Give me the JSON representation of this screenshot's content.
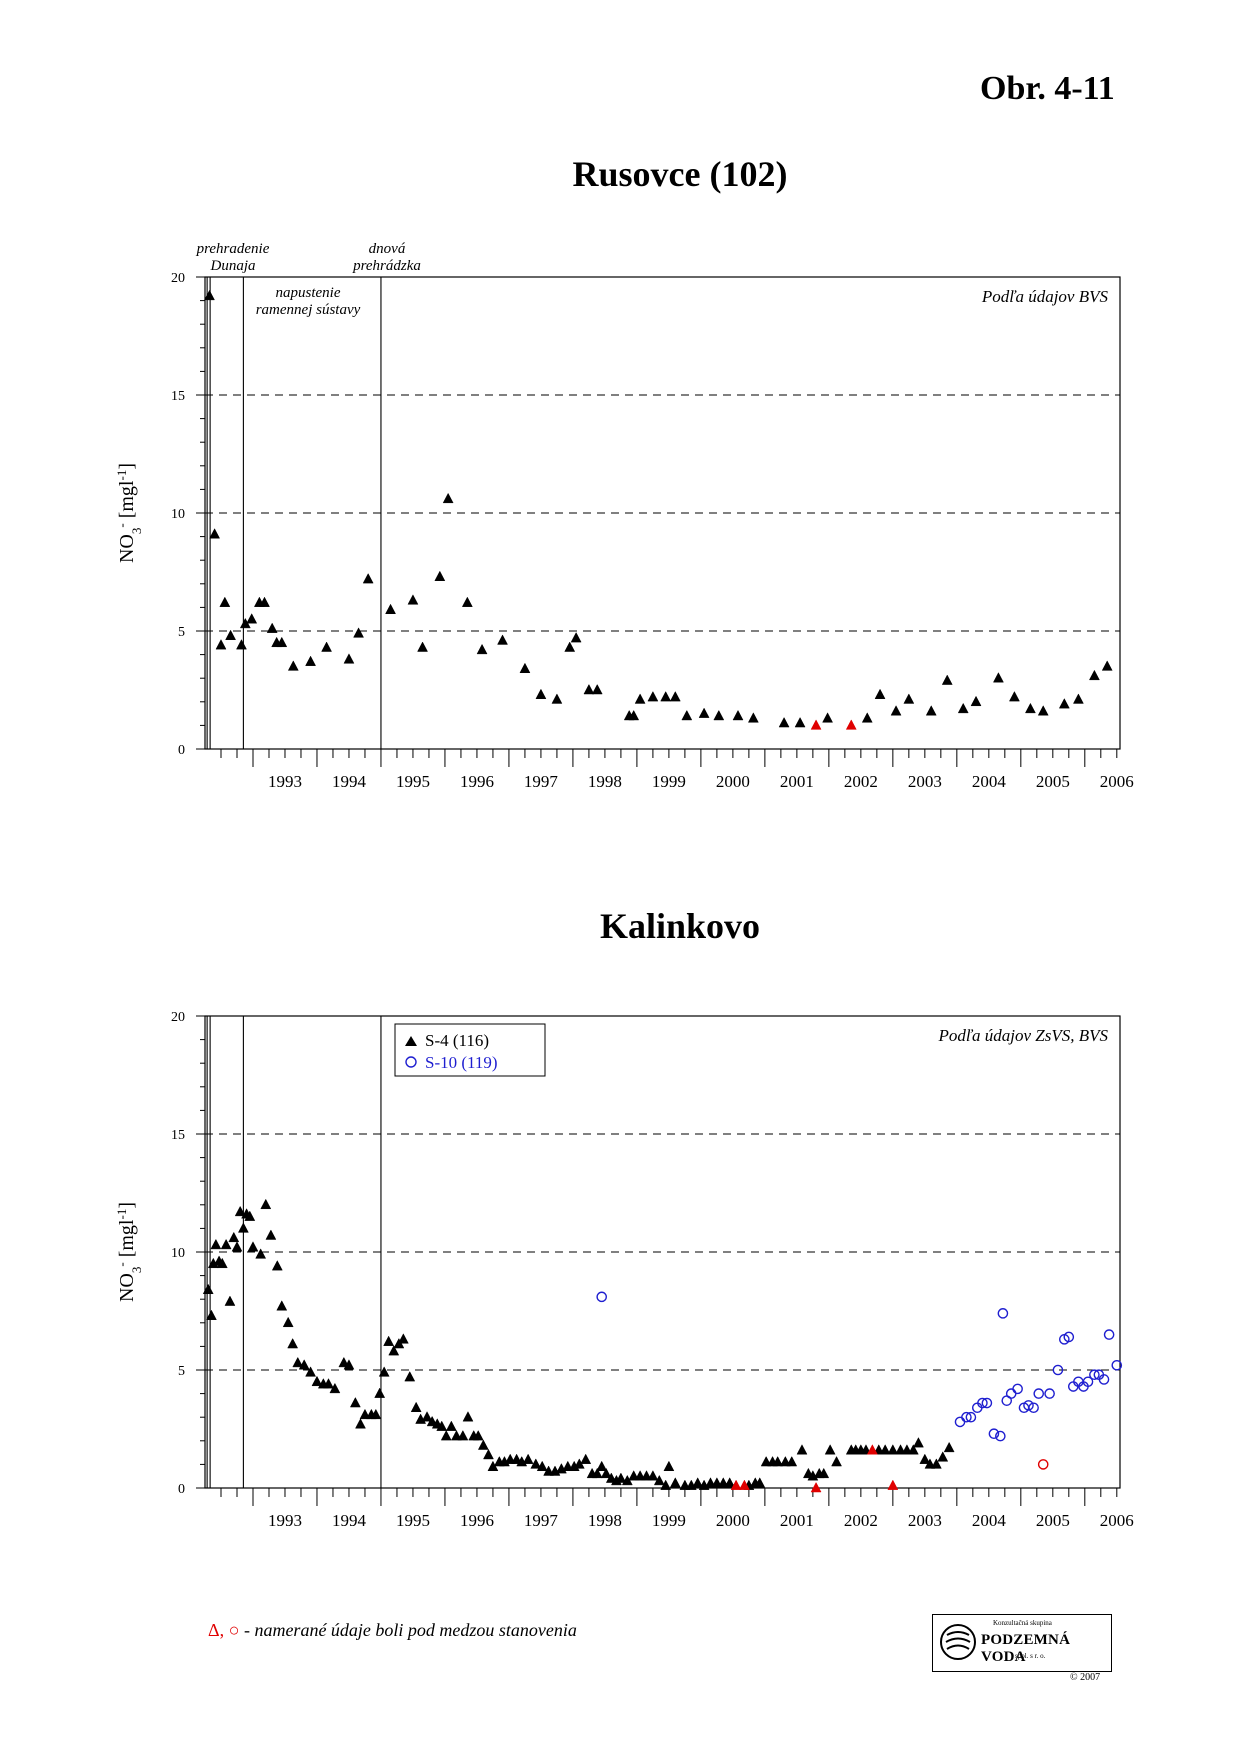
{
  "figure_number": "Obr. 4-11",
  "footnote": {
    "symbols": "Δ, ○",
    "text": " - namerané údaje boli pod medzou stanovenia"
  },
  "logo": {
    "top_text": "Konzultačná skupina",
    "main_text": "PODZEMNÁ VODA",
    "sub_text": "spol. s r. o.",
    "copyright": "© 2007"
  },
  "colors": {
    "normal": "#000000",
    "below_detection": "#e00000",
    "s10": "#1f1fd0"
  },
  "chart_data": [
    {
      "type": "scatter",
      "title": "Rusovce (102)",
      "ylabel": "NO3- [mgl-1]",
      "ylabel_parts": {
        "base": "NO",
        "sub": "3",
        "sup": "-",
        "unit": "[mgl",
        "unit_sup": "-1",
        "close": "]"
      },
      "ylim": [
        0,
        20
      ],
      "yticks": [
        0,
        5,
        10,
        15,
        20
      ],
      "xlim": [
        1992.25,
        2006.55
      ],
      "xticks": [
        "1993",
        "1994",
        "1995",
        "1996",
        "1997",
        "1998",
        "1999",
        "2000",
        "2001",
        "2002",
        "2003",
        "2004",
        "2005",
        "2006"
      ],
      "grid": "dashed at 5, 10, 15",
      "source_note": "Podľa údajov BVS",
      "events": [
        {
          "x": 1992.33,
          "label": [
            "prehradenie",
            "Dunaja"
          ]
        },
        {
          "x": 1992.85,
          "label": [
            "napustenie",
            "ramennej sústavy"
          ]
        },
        {
          "x": 1995.0,
          "label": [
            "dnová",
            "prehrádzka"
          ]
        }
      ],
      "series": [
        {
          "marker": "triangle",
          "points": [
            [
              1992.32,
              19.2
            ],
            [
              1992.4,
              9.1
            ],
            [
              1992.5,
              4.4
            ],
            [
              1992.56,
              6.2
            ],
            [
              1992.65,
              4.8
            ],
            [
              1992.82,
              4.4
            ],
            [
              1992.88,
              5.3
            ],
            [
              1992.98,
              5.5
            ],
            [
              1993.1,
              6.2
            ],
            [
              1993.18,
              6.2
            ],
            [
              1993.3,
              5.1
            ],
            [
              1993.37,
              4.5
            ],
            [
              1993.45,
              4.5
            ],
            [
              1993.63,
              3.5
            ],
            [
              1993.9,
              3.7
            ],
            [
              1994.15,
              4.3
            ],
            [
              1994.5,
              3.8
            ],
            [
              1994.65,
              4.9
            ],
            [
              1994.8,
              7.2
            ],
            [
              1995.15,
              5.9
            ],
            [
              1995.5,
              6.3
            ],
            [
              1995.65,
              4.3
            ],
            [
              1995.92,
              7.3
            ],
            [
              1996.05,
              10.6
            ],
            [
              1996.35,
              6.2
            ],
            [
              1996.58,
              4.2
            ],
            [
              1996.9,
              4.6
            ],
            [
              1997.25,
              3.4
            ],
            [
              1997.5,
              2.3
            ],
            [
              1997.75,
              2.1
            ],
            [
              1997.95,
              4.3
            ],
            [
              1998.05,
              4.7
            ],
            [
              1998.25,
              2.5
            ],
            [
              1998.38,
              2.5
            ],
            [
              1998.88,
              1.4
            ],
            [
              1998.95,
              1.4
            ],
            [
              1999.05,
              2.1
            ],
            [
              1999.25,
              2.2
            ],
            [
              1999.45,
              2.2
            ],
            [
              1999.6,
              2.2
            ],
            [
              1999.78,
              1.4
            ],
            [
              2000.05,
              1.5
            ],
            [
              2000.28,
              1.4
            ],
            [
              2000.58,
              1.4
            ],
            [
              2000.82,
              1.3
            ],
            [
              2001.3,
              1.1
            ],
            [
              2001.55,
              1.1
            ],
            [
              2001.98,
              1.3
            ],
            [
              2002.6,
              1.3
            ],
            [
              2002.8,
              2.3
            ],
            [
              2003.05,
              1.6
            ],
            [
              2003.25,
              2.1
            ],
            [
              2003.6,
              1.6
            ],
            [
              2003.85,
              2.9
            ],
            [
              2004.1,
              1.7
            ],
            [
              2004.3,
              2.0
            ],
            [
              2004.65,
              3.0
            ],
            [
              2004.9,
              2.2
            ],
            [
              2005.15,
              1.7
            ],
            [
              2005.35,
              1.6
            ],
            [
              2005.68,
              1.9
            ],
            [
              2005.9,
              2.1
            ],
            [
              2006.15,
              3.1
            ],
            [
              2006.35,
              3.5
            ]
          ]
        },
        {
          "marker": "triangle",
          "below_detection": true,
          "points": [
            [
              2001.8,
              1.0
            ],
            [
              2002.35,
              1.0
            ]
          ]
        }
      ]
    },
    {
      "type": "scatter",
      "title": "Kalinkovo",
      "ylabel": "NO3- [mgl-1]",
      "ylabel_parts": {
        "base": "NO",
        "sub": "3",
        "sup": "-",
        "unit": "[mgl",
        "unit_sup": "-1",
        "close": "]"
      },
      "ylim": [
        0,
        20
      ],
      "yticks": [
        0,
        5,
        10,
        15,
        20
      ],
      "xlim": [
        1992.25,
        2006.55
      ],
      "xticks": [
        "1993",
        "1994",
        "1995",
        "1996",
        "1997",
        "1998",
        "1999",
        "2000",
        "2001",
        "2002",
        "2003",
        "2004",
        "2005",
        "2006"
      ],
      "grid": "dashed at 5, 10, 15",
      "source_note": "Podľa údajov ZsVS, BVS",
      "events": [
        {
          "x": 1992.33,
          "label": []
        },
        {
          "x": 1992.85,
          "label": []
        },
        {
          "x": 1995.0,
          "label": []
        }
      ],
      "legend": {
        "position": "top-left",
        "entries": [
          "S-4 (116)",
          "S-10 (119)"
        ]
      },
      "series": [
        {
          "name": "S-4 (116)",
          "marker": "triangle",
          "points": [
            [
              1992.3,
              8.4
            ],
            [
              1992.35,
              7.3
            ],
            [
              1992.38,
              9.5
            ],
            [
              1992.42,
              10.3
            ],
            [
              1992.47,
              9.6
            ],
            [
              1992.52,
              9.5
            ],
            [
              1992.58,
              10.3
            ],
            [
              1992.64,
              7.9
            ],
            [
              1992.7,
              10.6
            ],
            [
              1992.75,
              10.2
            ],
            [
              1992.8,
              11.7
            ],
            [
              1992.85,
              11.0
            ],
            [
              1992.9,
              11.6
            ],
            [
              1992.95,
              11.5
            ],
            [
              1993.0,
              10.2
            ],
            [
              1993.12,
              9.9
            ],
            [
              1993.2,
              12.0
            ],
            [
              1993.28,
              10.7
            ],
            [
              1993.38,
              9.4
            ],
            [
              1993.45,
              7.7
            ],
            [
              1993.55,
              7.0
            ],
            [
              1993.62,
              6.1
            ],
            [
              1993.7,
              5.3
            ],
            [
              1993.8,
              5.2
            ],
            [
              1993.9,
              4.9
            ],
            [
              1994.0,
              4.5
            ],
            [
              1994.1,
              4.4
            ],
            [
              1994.18,
              4.4
            ],
            [
              1994.28,
              4.2
            ],
            [
              1994.42,
              5.3
            ],
            [
              1994.5,
              5.2
            ],
            [
              1994.6,
              3.6
            ],
            [
              1994.68,
              2.7
            ],
            [
              1994.75,
              3.1
            ],
            [
              1994.85,
              3.1
            ],
            [
              1994.92,
              3.1
            ],
            [
              1994.98,
              4.0
            ],
            [
              1995.05,
              4.9
            ],
            [
              1995.12,
              6.2
            ],
            [
              1995.2,
              5.8
            ],
            [
              1995.28,
              6.1
            ],
            [
              1995.35,
              6.3
            ],
            [
              1995.45,
              4.7
            ],
            [
              1995.55,
              3.4
            ],
            [
              1995.62,
              2.9
            ],
            [
              1995.72,
              3.0
            ],
            [
              1995.8,
              2.8
            ],
            [
              1995.88,
              2.7
            ],
            [
              1995.95,
              2.6
            ],
            [
              1996.02,
              2.2
            ],
            [
              1996.1,
              2.6
            ],
            [
              1996.18,
              2.2
            ],
            [
              1996.28,
              2.2
            ],
            [
              1996.36,
              3.0
            ],
            [
              1996.45,
              2.2
            ],
            [
              1996.52,
              2.2
            ],
            [
              1996.6,
              1.8
            ],
            [
              1996.68,
              1.4
            ],
            [
              1996.75,
              0.9
            ],
            [
              1996.85,
              1.1
            ],
            [
              1996.93,
              1.1
            ],
            [
              1997.02,
              1.2
            ],
            [
              1997.12,
              1.2
            ],
            [
              1997.2,
              1.1
            ],
            [
              1997.3,
              1.2
            ],
            [
              1997.42,
              1.0
            ],
            [
              1997.52,
              0.9
            ],
            [
              1997.62,
              0.7
            ],
            [
              1997.72,
              0.7
            ],
            [
              1997.82,
              0.8
            ],
            [
              1997.92,
              0.9
            ],
            [
              1998.02,
              0.9
            ],
            [
              1998.1,
              1.0
            ],
            [
              1998.2,
              1.2
            ],
            [
              1998.3,
              0.6
            ],
            [
              1998.38,
              0.6
            ],
            [
              1998.45,
              0.9
            ],
            [
              1998.52,
              0.6
            ],
            [
              1998.6,
              0.4
            ],
            [
              1998.68,
              0.3
            ],
            [
              1998.75,
              0.4
            ],
            [
              1998.85,
              0.3
            ],
            [
              1998.95,
              0.5
            ],
            [
              1999.05,
              0.5
            ],
            [
              1999.15,
              0.5
            ],
            [
              1999.25,
              0.5
            ],
            [
              1999.35,
              0.3
            ],
            [
              1999.45,
              0.1
            ],
            [
              1999.5,
              0.9
            ],
            [
              1999.6,
              0.2
            ],
            [
              1999.75,
              0.1
            ],
            [
              1999.85,
              0.1
            ],
            [
              1999.95,
              0.2
            ],
            [
              2000.05,
              0.1
            ],
            [
              2000.15,
              0.2
            ],
            [
              2000.25,
              0.2
            ],
            [
              2000.35,
              0.2
            ],
            [
              2000.45,
              0.2
            ],
            [
              2000.75,
              0.1
            ],
            [
              2000.85,
              0.2
            ],
            [
              2000.92,
              0.2
            ],
            [
              2001.02,
              1.1
            ],
            [
              2001.12,
              1.1
            ],
            [
              2001.2,
              1.1
            ],
            [
              2001.32,
              1.1
            ],
            [
              2001.42,
              1.1
            ],
            [
              2001.58,
              1.6
            ],
            [
              2001.68,
              0.6
            ],
            [
              2001.75,
              0.5
            ],
            [
              2001.85,
              0.6
            ],
            [
              2001.92,
              0.6
            ],
            [
              2002.02,
              1.6
            ],
            [
              2002.12,
              1.1
            ],
            [
              2002.35,
              1.6
            ],
            [
              2002.42,
              1.6
            ],
            [
              2002.5,
              1.6
            ],
            [
              2002.58,
              1.6
            ],
            [
              2002.78,
              1.6
            ],
            [
              2002.88,
              1.6
            ],
            [
              2003.0,
              1.6
            ],
            [
              2003.12,
              1.6
            ],
            [
              2003.22,
              1.6
            ],
            [
              2003.32,
              1.6
            ],
            [
              2003.4,
              1.9
            ],
            [
              2003.5,
              1.2
            ],
            [
              2003.58,
              1.0
            ],
            [
              2003.68,
              1.0
            ],
            [
              2003.78,
              1.3
            ],
            [
              2003.88,
              1.7
            ]
          ]
        },
        {
          "name": "S-4 (116)",
          "marker": "triangle",
          "below_detection": true,
          "points": [
            [
              2000.55,
              0.1
            ],
            [
              2000.68,
              0.1
            ],
            [
              2001.8,
              0.0
            ],
            [
              2002.68,
              1.6
            ],
            [
              2003.0,
              0.1
            ]
          ]
        },
        {
          "name": "S-10 (119)",
          "marker": "circle",
          "points": [
            [
              1998.45,
              8.1
            ],
            [
              2004.05,
              2.8
            ],
            [
              2004.15,
              3.0
            ],
            [
              2004.22,
              3.0
            ],
            [
              2004.32,
              3.4
            ],
            [
              2004.4,
              3.6
            ],
            [
              2004.47,
              3.6
            ],
            [
              2004.58,
              2.3
            ],
            [
              2004.68,
              2.2
            ],
            [
              2004.72,
              7.4
            ],
            [
              2004.78,
              3.7
            ],
            [
              2004.85,
              4.0
            ],
            [
              2004.95,
              4.2
            ],
            [
              2005.05,
              3.4
            ],
            [
              2005.12,
              3.5
            ],
            [
              2005.2,
              3.4
            ],
            [
              2005.28,
              4.0
            ],
            [
              2005.45,
              4.0
            ],
            [
              2005.58,
              5.0
            ],
            [
              2005.68,
              6.3
            ],
            [
              2005.75,
              6.4
            ],
            [
              2005.82,
              4.3
            ],
            [
              2005.9,
              4.5
            ],
            [
              2005.98,
              4.3
            ],
            [
              2006.05,
              4.5
            ],
            [
              2006.15,
              4.8
            ],
            [
              2006.22,
              4.8
            ],
            [
              2006.3,
              4.6
            ],
            [
              2006.38,
              6.5
            ],
            [
              2006.5,
              5.2
            ]
          ]
        },
        {
          "name": "S-10 (119)",
          "marker": "circle",
          "below_detection": true,
          "points": [
            [
              2005.35,
              1.0
            ]
          ]
        }
      ]
    }
  ]
}
